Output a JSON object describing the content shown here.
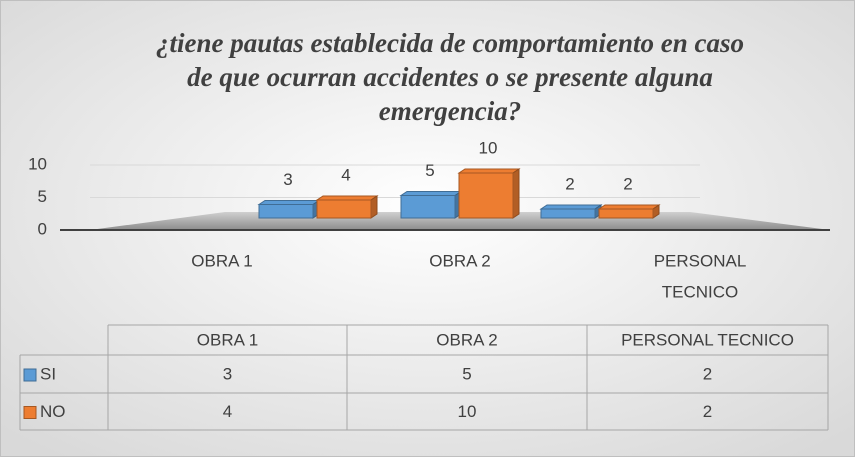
{
  "chart_data": {
    "type": "bar3d",
    "title_lines": [
      "¿tiene pautas establecida de comportamiento en caso",
      "de que ocurran accidentes o se presente alguna",
      "emergencia?"
    ],
    "categories": [
      "OBRA 1",
      "OBRA 2",
      "PERSONAL TECNICO"
    ],
    "category_label_lines": [
      [
        "OBRA 1"
      ],
      [
        "OBRA 2"
      ],
      [
        "PERSONAL",
        "TECNICO"
      ]
    ],
    "series": [
      {
        "name": "SI",
        "color": "#5b9bd5",
        "values": [
          3,
          5,
          2
        ]
      },
      {
        "name": "NO",
        "color": "#ed7d31",
        "values": [
          4,
          10,
          2
        ]
      }
    ],
    "ylim": [
      0,
      10
    ],
    "yticks": [
      0,
      5,
      10
    ],
    "grid": true,
    "data_table": true
  }
}
